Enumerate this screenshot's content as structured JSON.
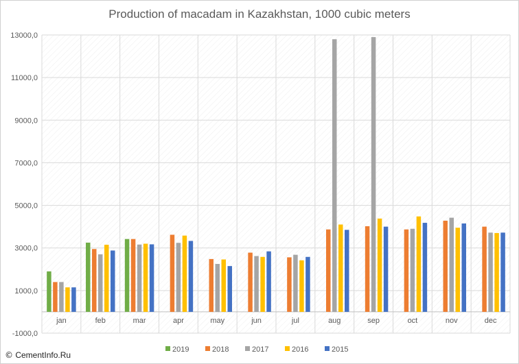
{
  "chart_data": {
    "type": "bar",
    "title": "Production of macadam in Kazakhstan, 1000 cubic meters",
    "xlabel": "",
    "ylabel": "",
    "ylim": [
      -1000,
      13000
    ],
    "yticks": [
      -1000,
      1000,
      3000,
      5000,
      7000,
      9000,
      11000,
      13000
    ],
    "ytick_labels": [
      "-1000,0",
      "1000,0",
      "3000,0",
      "5000,0",
      "7000,0",
      "9000,0",
      "11000,0",
      "13000,0"
    ],
    "grid": true,
    "legend_position": "bottom",
    "categories": [
      "jan",
      "feb",
      "mar",
      "apr",
      "may",
      "jun",
      "jul",
      "aug",
      "sep",
      "oct",
      "nov",
      "dec"
    ],
    "series": [
      {
        "name": "2019",
        "color": "#70AD47",
        "values": [
          1900,
          3250,
          3420,
          null,
          null,
          null,
          null,
          null,
          null,
          null,
          null,
          null
        ]
      },
      {
        "name": "2018",
        "color": "#ED7D31",
        "values": [
          1400,
          2950,
          3420,
          3620,
          2480,
          2780,
          2560,
          3870,
          4020,
          3870,
          4280,
          4000
        ]
      },
      {
        "name": "2017",
        "color": "#A5A5A5",
        "values": [
          1400,
          2700,
          3160,
          3240,
          2250,
          2620,
          2680,
          12800,
          12900,
          3900,
          4420,
          3720
        ]
      },
      {
        "name": "2016",
        "color": "#FFC000",
        "values": [
          1150,
          3150,
          3200,
          3580,
          2460,
          2580,
          2420,
          4100,
          4380,
          4480,
          3950,
          3700
        ]
      },
      {
        "name": "2015",
        "color": "#4472C4",
        "values": [
          1150,
          2880,
          3170,
          3330,
          2150,
          2840,
          2580,
          3850,
          4000,
          4180,
          4150,
          3720
        ]
      }
    ]
  },
  "watermark": {
    "symbol": "©",
    "text": "CementInfo.Ru"
  }
}
